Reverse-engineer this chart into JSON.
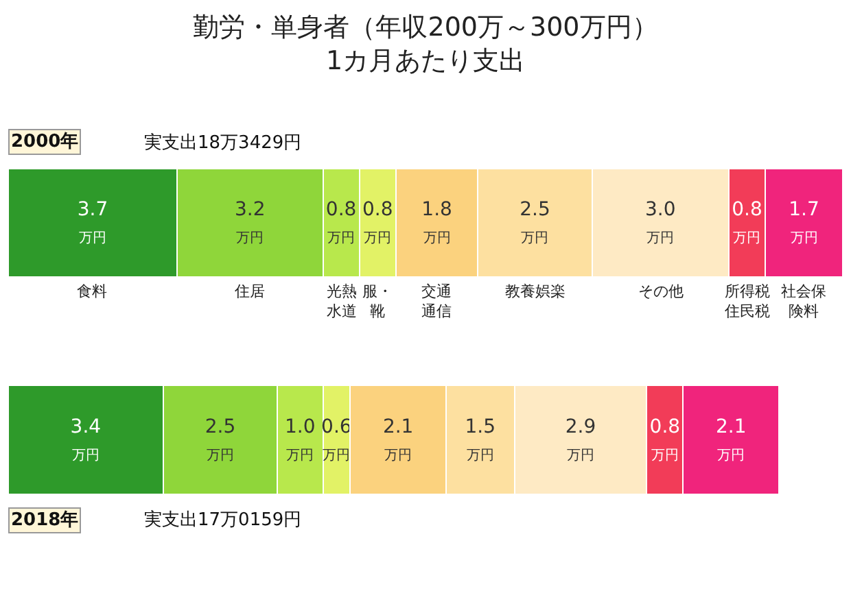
{
  "chart_data": {
    "type": "bar",
    "orientation": "horizontal",
    "stacked": true,
    "title": "勤労・単身者（年収200万～300万円）\n1カ月あたり支出",
    "categories": [
      "2000年",
      "2018年"
    ],
    "annotations": [
      "実支出18万3429円",
      "実支出17万0159円"
    ],
    "legend": false,
    "tick_labels": false,
    "series": [
      {
        "name": "食料",
        "color": "#2e9a2a",
        "values": [
          3.7,
          3.4
        ],
        "value_labels": [
          "3.7\n万円",
          "3.4\n万円"
        ]
      },
      {
        "name": "住居",
        "color": "#8fd63a",
        "values": [
          3.2,
          2.5
        ],
        "value_labels": [
          "3.2\n万円",
          "2.5\n万円"
        ]
      },
      {
        "name": "光熱水道",
        "color": "#b8e84c",
        "values": [
          0.8,
          1.0
        ],
        "value_labels": [
          "0.8\n万円",
          "1.0\n万円"
        ]
      },
      {
        "name": "服・靴",
        "color": "#e2f266",
        "values": [
          0.8,
          0.6
        ],
        "value_labels": [
          "0.8\n万円",
          "0.6\n万円"
        ]
      },
      {
        "name": "交通通信",
        "color": "#fbd27e",
        "values": [
          1.8,
          2.1
        ],
        "value_labels": [
          "1.8\n万円",
          "2.1\n万円"
        ]
      },
      {
        "name": "教養娯楽",
        "color": "#fde0a0",
        "values": [
          2.5,
          1.5
        ],
        "value_labels": [
          "2.5\n万円",
          "1.5\n万円"
        ]
      },
      {
        "name": "その他",
        "color": "#feeac4",
        "values": [
          3.0,
          2.9
        ],
        "value_labels": [
          "3.0\n万円",
          "2.9\n万円"
        ]
      },
      {
        "name": "所得税住民税",
        "color": "#f23c58",
        "values": [
          0.8,
          0.8
        ],
        "value_labels": [
          "0.8\n万円",
          "0.8\n万円"
        ]
      },
      {
        "name": "社会保険料",
        "color": "#f0247c",
        "values": [
          1.7,
          2.1
        ],
        "value_labels": [
          "1.7\n万円",
          "2.1\n万円"
        ]
      }
    ]
  }
}
